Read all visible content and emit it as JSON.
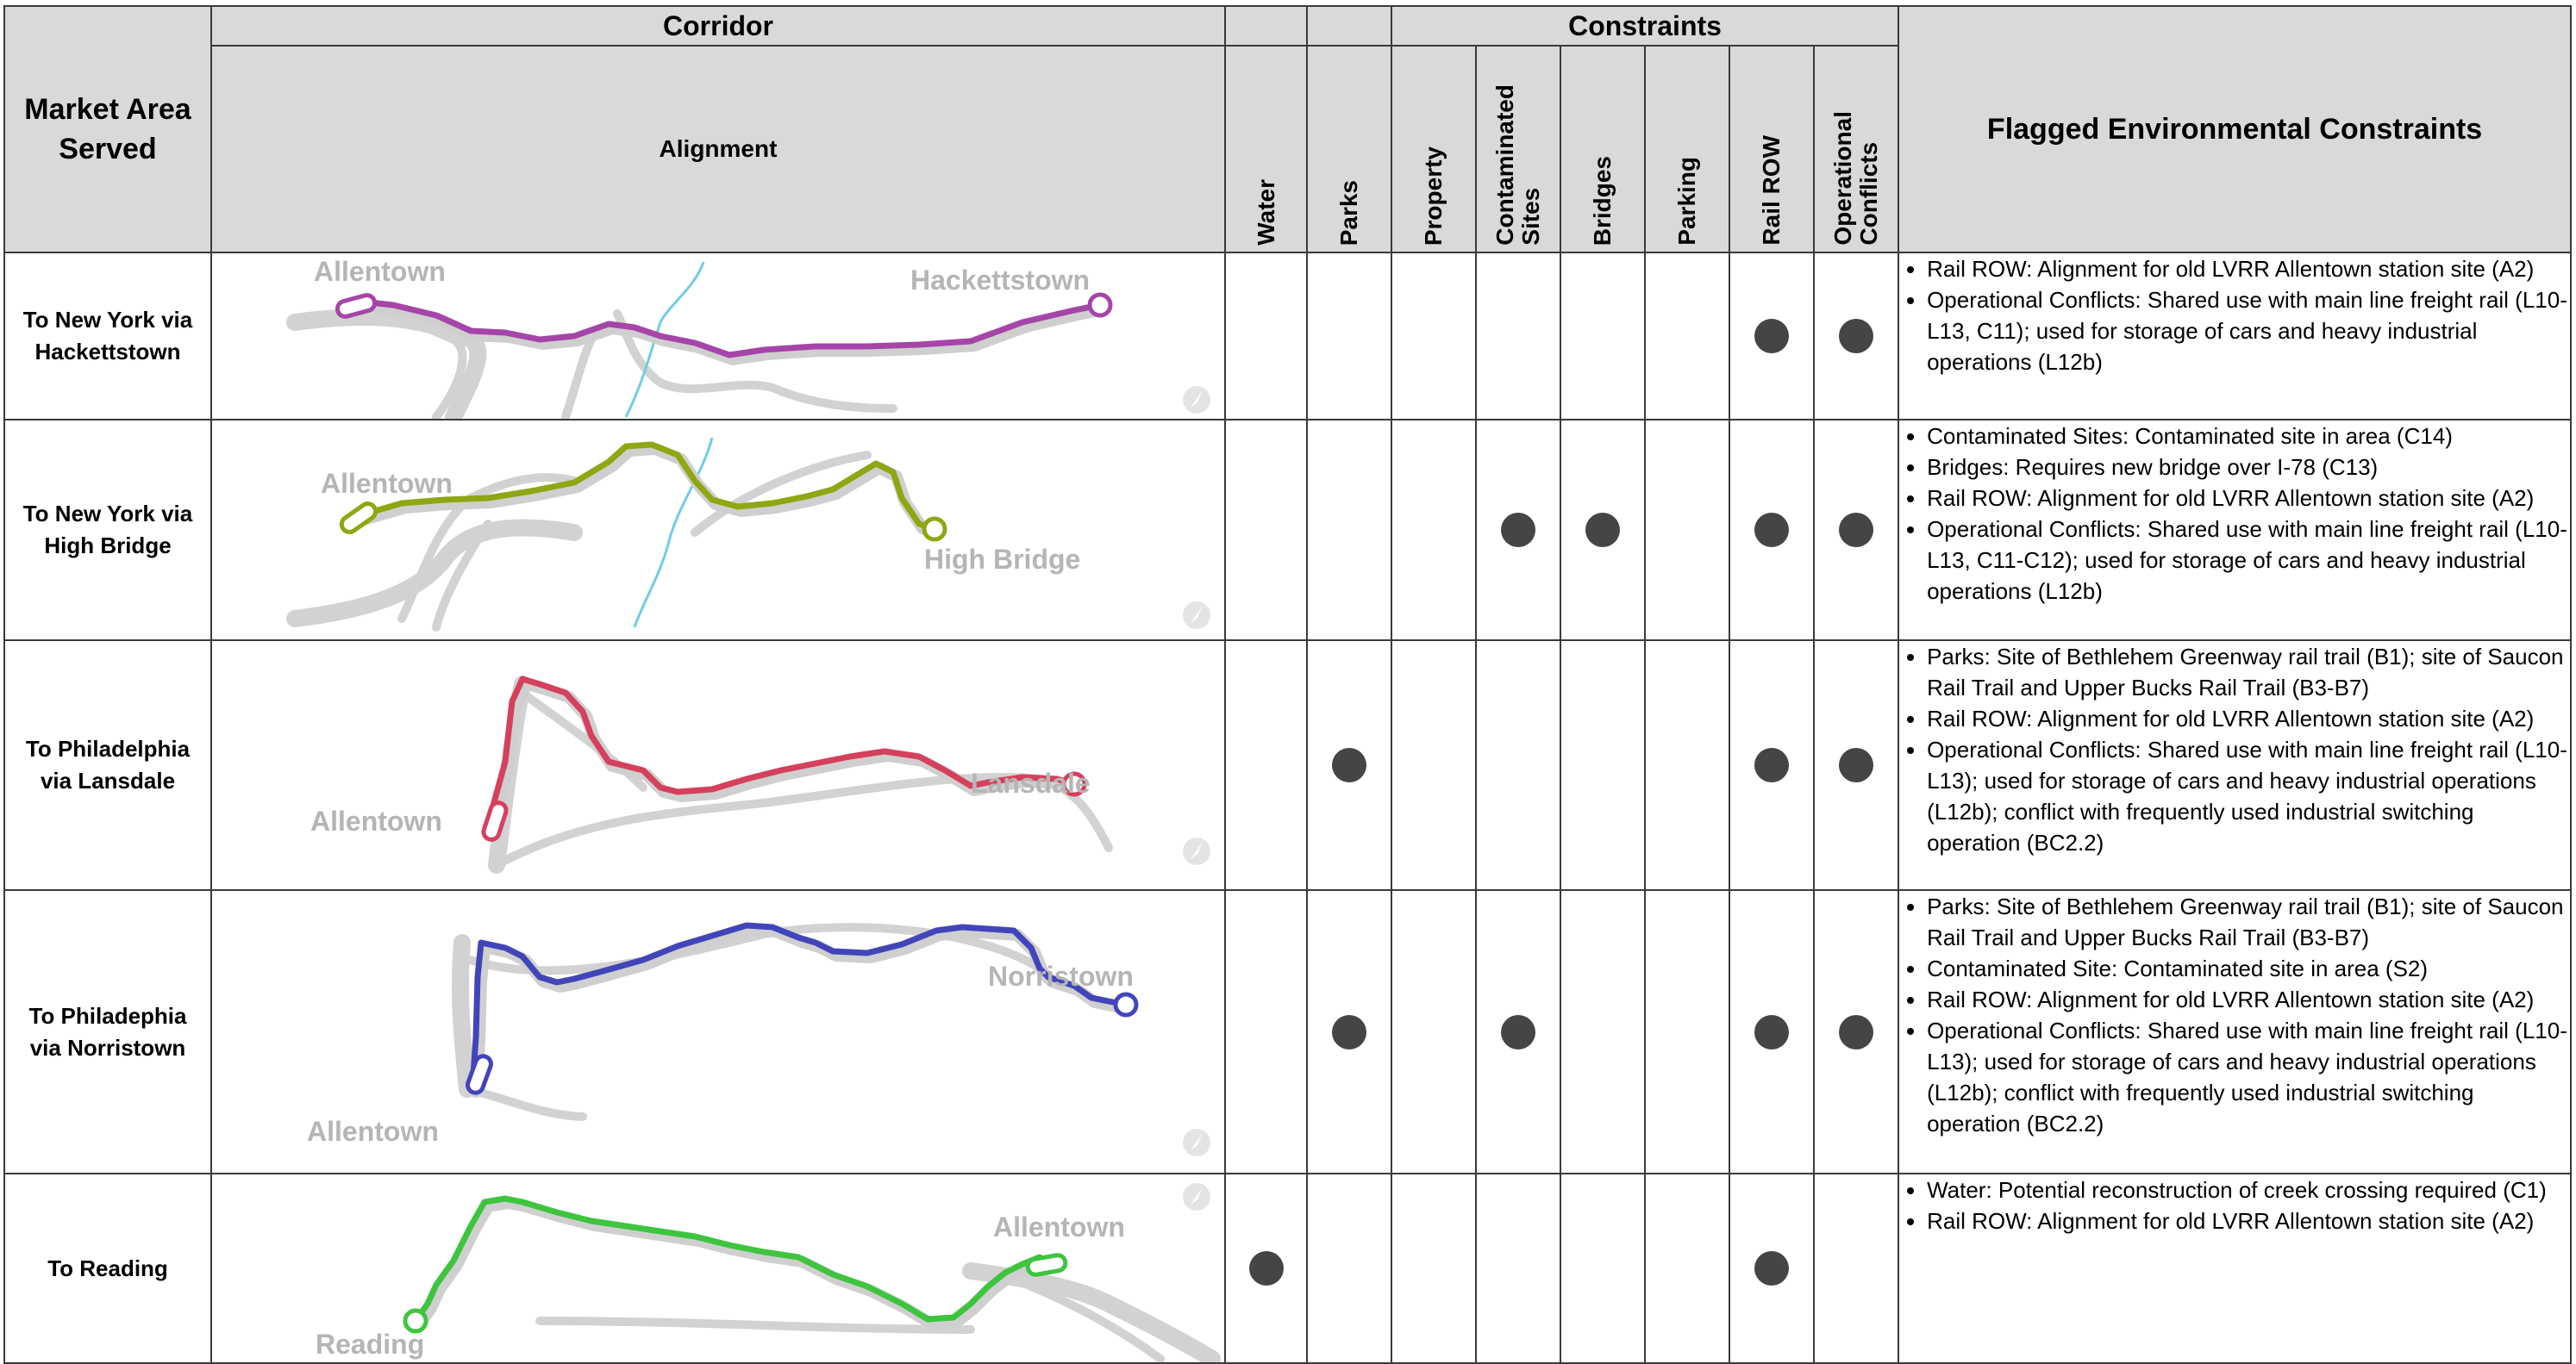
{
  "header": {
    "market": "Market Area Served",
    "corridor": "Corridor",
    "alignment": "Alignment",
    "constraints": "Constraints",
    "flagged": "Flagged Environmental Constraints",
    "cols": {
      "water": "Water",
      "parks": "Parks",
      "property": "Property",
      "contaminated_1": "Contaminated",
      "contaminated_2": "Sites",
      "bridges": "Bridges",
      "parking": "Parking",
      "rail_row": "Rail ROW",
      "operational_1": "Operational",
      "operational_2": "Conflicts"
    }
  },
  "rows": [
    {
      "market": [
        "To New York via",
        "Hackettstown"
      ],
      "map": {
        "labels": [
          "Allentown",
          "Hackettstown"
        ],
        "color": "#a545a8"
      },
      "markers": {
        "water": false,
        "parks": false,
        "property": false,
        "contaminated": false,
        "bridges": false,
        "parking": false,
        "rail_row": true,
        "operational": true
      },
      "flags": [
        "Rail ROW: Alignment for old LVRR Allentown station site (A2)",
        "Operational Conflicts: Shared use with main line freight rail (L10-L13, C11); used for storage of cars and heavy industrial operations (L12b)"
      ]
    },
    {
      "market": [
        "To New York via",
        "High Bridge"
      ],
      "map": {
        "labels": [
          "Allentown",
          "High Bridge"
        ],
        "color": "#8ea712"
      },
      "markers": {
        "water": false,
        "parks": false,
        "property": false,
        "contaminated": true,
        "bridges": true,
        "parking": false,
        "rail_row": true,
        "operational": true
      },
      "flags": [
        "Contaminated Sites: Contaminated site in area (C14)",
        "Bridges: Requires new bridge over I-78 (C13)",
        "Rail ROW: Alignment for old LVRR Allentown station site (A2)",
        "Operational Conflicts: Shared use with main line freight rail (L10-L13, C11-C12); used for storage of cars and heavy industrial operations (L12b)"
      ]
    },
    {
      "market": [
        "To Philadelphia",
        "via Lansdale"
      ],
      "map": {
        "labels": [
          "Allentown",
          "Lansdale"
        ],
        "color": "#d5405d"
      },
      "markers": {
        "water": false,
        "parks": true,
        "property": false,
        "contaminated": false,
        "bridges": false,
        "parking": false,
        "rail_row": true,
        "operational": true
      },
      "flags": [
        "Parks: Site of Bethlehem Greenway rail trail (B1); site of Saucon Rail Trail and Upper Bucks Rail Trail (B3-B7)",
        "Rail ROW: Alignment for old LVRR Allentown station site (A2)",
        "Operational Conflicts: Shared use with main line freight rail (L10-L13); used for storage of cars and heavy industrial operations (L12b); conflict with frequently used industrial switching operation (BC2.2)"
      ]
    },
    {
      "market": [
        "To Philadephia",
        "via Norristown"
      ],
      "map": {
        "labels": [
          "Allentown",
          "Norristown"
        ],
        "color": "#4245b9"
      },
      "markers": {
        "water": false,
        "parks": true,
        "property": false,
        "contaminated": true,
        "bridges": false,
        "parking": false,
        "rail_row": true,
        "operational": true
      },
      "flags": [
        "Parks: Site of Bethlehem Greenway rail trail (B1); site of Saucon Rail Trail and Upper Bucks Rail Trail (B3-B7)",
        "Contaminated Site: Contaminated site in area (S2)",
        "Rail ROW: Alignment for old LVRR Allentown station site (A2)",
        "Operational Conflicts: Shared use with main line freight rail (L10-L13); used for storage of cars and heavy industrial operations (L12b); conflict with frequently used industrial switching operation (BC2.2)"
      ]
    },
    {
      "market": [
        "To Reading"
      ],
      "map": {
        "labels": [
          "Allentown",
          "Reading"
        ],
        "color": "#3ec43e"
      },
      "markers": {
        "water": true,
        "parks": false,
        "property": false,
        "contaminated": false,
        "bridges": false,
        "parking": false,
        "rail_row": true,
        "operational": false
      },
      "flags": [
        "Water: Potential reconstruction of creek crossing required (C1)",
        "Rail ROW: Alignment for old LVRR Allentown station site (A2)"
      ]
    }
  ]
}
